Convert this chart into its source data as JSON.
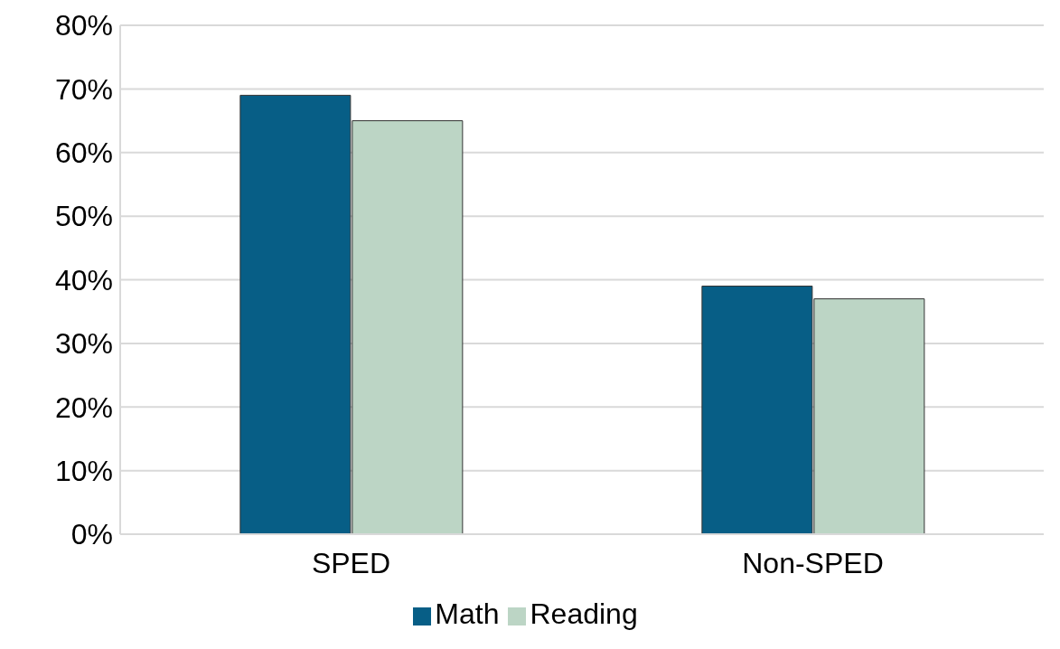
{
  "chart_data": {
    "type": "bar",
    "categories": [
      "SPED",
      "Non-SPED"
    ],
    "series": [
      {
        "name": "Math",
        "color": "#075e86",
        "values": [
          69,
          39
        ]
      },
      {
        "name": "Reading",
        "color": "#bcd5c5",
        "values": [
          65,
          37
        ]
      }
    ],
    "ylim": [
      0,
      80
    ],
    "yticks": [
      {
        "value": 0,
        "label": "0%"
      },
      {
        "value": 10,
        "label": "10%"
      },
      {
        "value": 20,
        "label": "20%"
      },
      {
        "value": 30,
        "label": "30%"
      },
      {
        "value": 40,
        "label": "40%"
      },
      {
        "value": 50,
        "label": "50%"
      },
      {
        "value": 60,
        "label": "60%"
      },
      {
        "value": 70,
        "label": "70%"
      },
      {
        "value": 80,
        "label": "80%"
      }
    ],
    "grid": "y",
    "legend": "bottom"
  }
}
